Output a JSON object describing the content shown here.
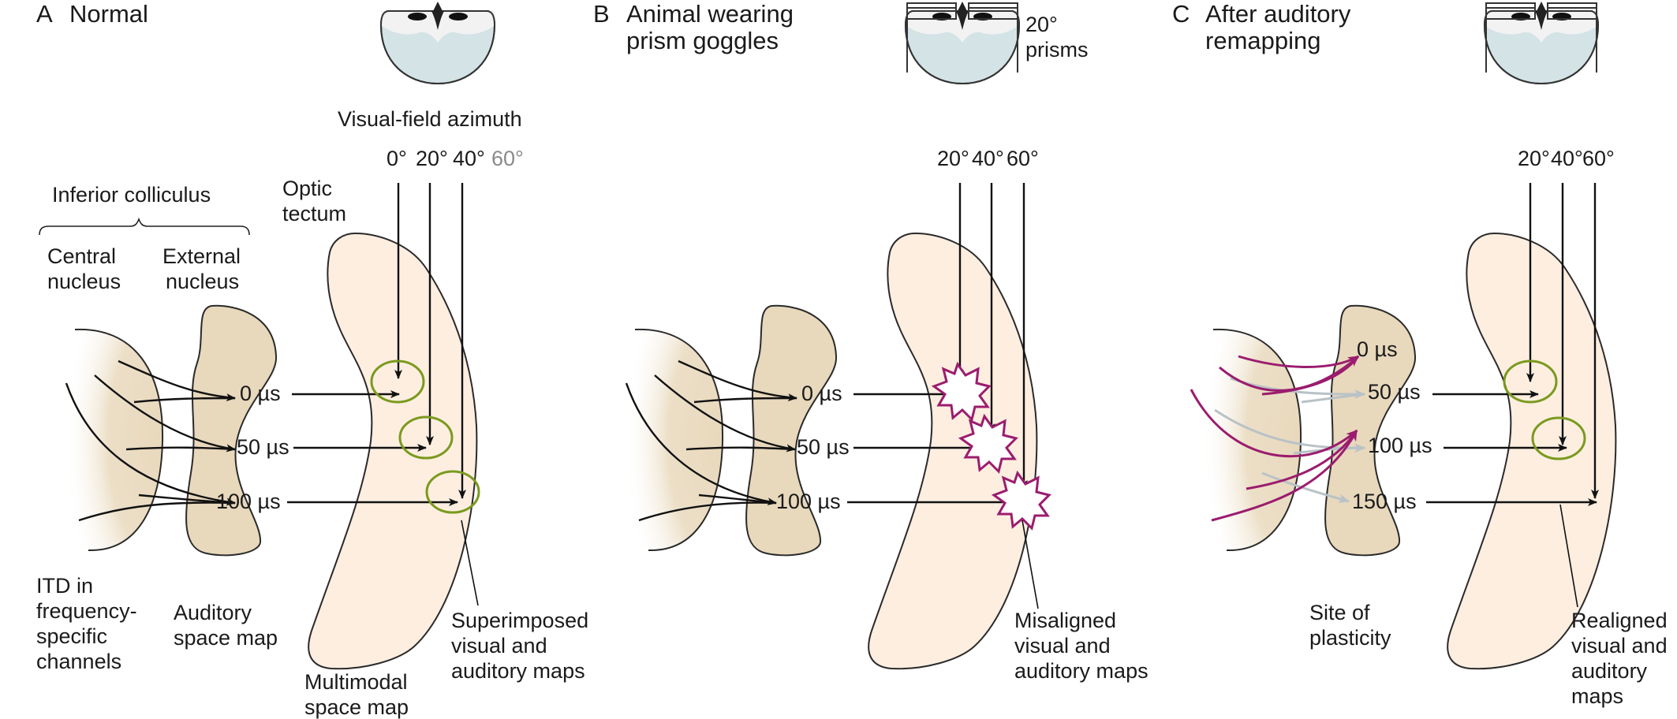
{
  "colors": {
    "tan": "#e8d8bc",
    "tan_stroke": "#2a2a2a",
    "peach": "#fdeee0",
    "green": "#7a9a1e",
    "magenta": "#9b1c6e",
    "grey_arrow": "#b9c2c6",
    "owl_fill": "#d3e3e6",
    "arrow": "#111111",
    "azimuth_faded": "#8a8a8a"
  },
  "panelA": {
    "letter": "A",
    "title": "Normal",
    "visual_field_label": "Visual-field azimuth",
    "azimuths": [
      "0°",
      "20°",
      "40°",
      "60°"
    ],
    "inferior_colliculus": "Inferior colliculus",
    "central_nucleus": [
      "Central",
      "nucleus"
    ],
    "external_nucleus": [
      "External",
      "nucleus"
    ],
    "optic_tectum": [
      "Optic",
      "tectum"
    ],
    "itd_values": [
      "0 µs",
      "50 µs",
      "100 µs"
    ],
    "itd_caption": [
      "ITD in",
      "frequency-",
      "specific",
      "channels"
    ],
    "auditory_caption": [
      "Auditory",
      "space map"
    ],
    "multimodal_caption": [
      "Multimodal",
      "space map"
    ],
    "superimposed_caption": [
      "Superimposed",
      "visual and",
      "auditory maps"
    ]
  },
  "panelB": {
    "letter": "B",
    "title": [
      "Animal wearing",
      "prism goggles"
    ],
    "prisms_label": [
      "20°",
      "prisms"
    ],
    "azimuths": [
      "20°",
      "40°",
      "60°"
    ],
    "itd_values": [
      "0 µs",
      "50 µs",
      "100 µs"
    ],
    "misaligned_caption": [
      "Misaligned",
      "visual and",
      "auditory maps"
    ]
  },
  "panelC": {
    "letter": "C",
    "title": [
      "After auditory",
      "remapping"
    ],
    "azimuths": [
      "20°",
      "40°",
      "60°"
    ],
    "itd_values": [
      "0 µs",
      "50 µs",
      "100 µs",
      "150 µs"
    ],
    "plasticity_caption": [
      "Site of",
      "plasticity"
    ],
    "realigned_caption": [
      "Realigned",
      "visual and",
      "auditory",
      "maps"
    ]
  }
}
